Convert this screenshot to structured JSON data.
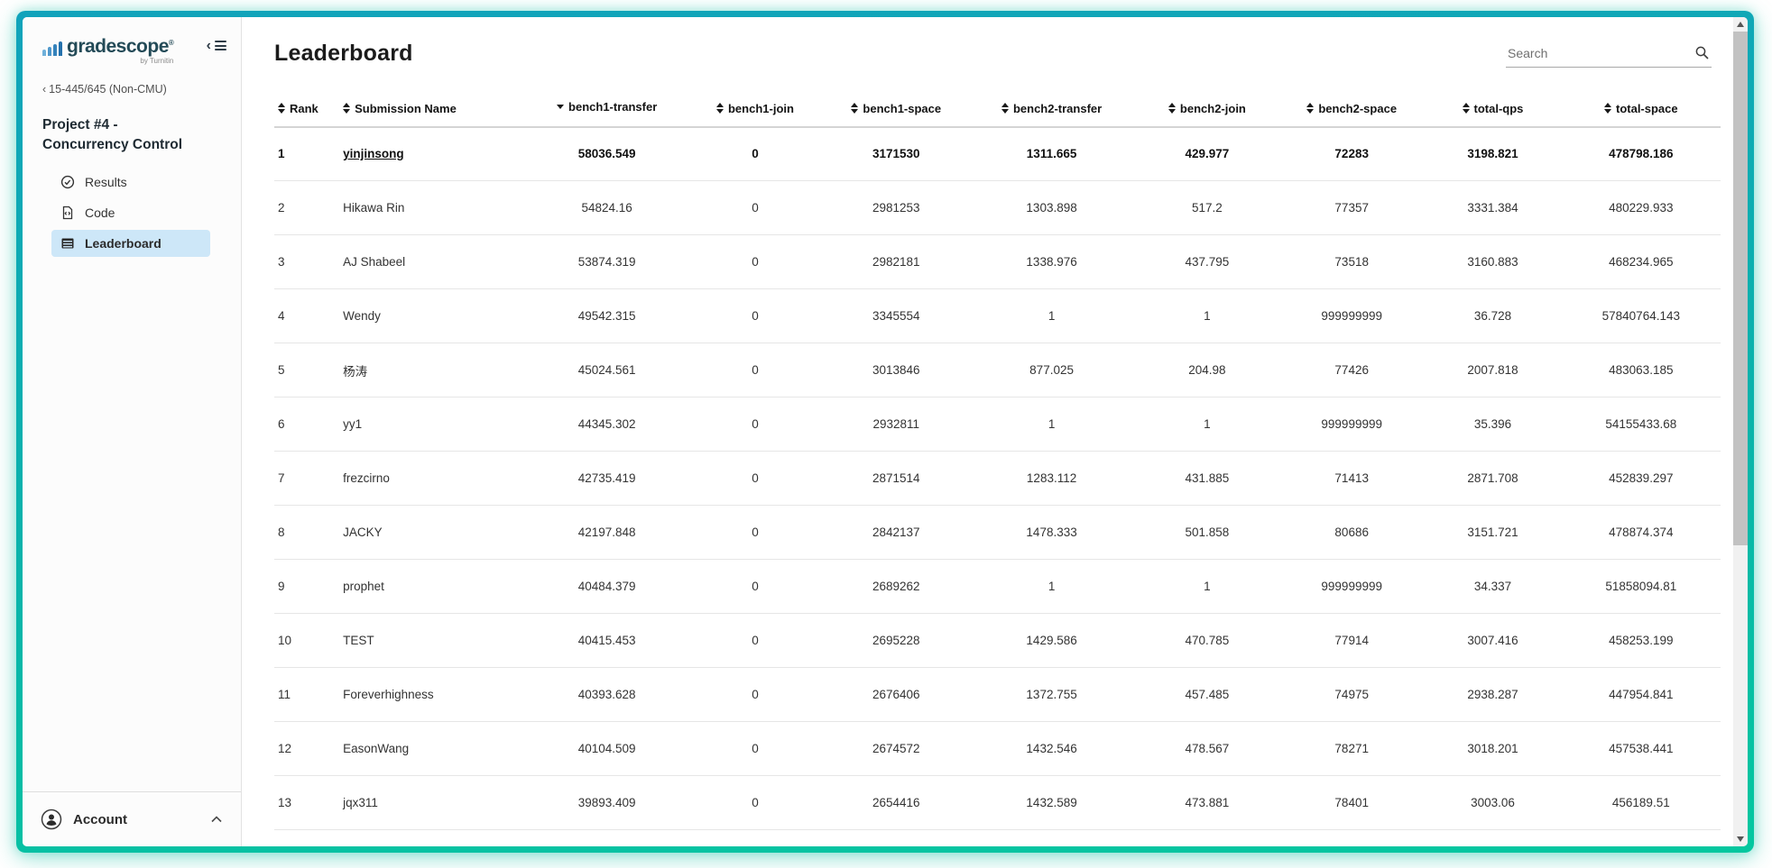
{
  "sidebar": {
    "logo": {
      "brand": "gradescope",
      "registered_mark": "®",
      "byline": "by Turnitin"
    },
    "breadcrumb": {
      "arrow": "‹",
      "label": "15-445/645 (Non-CMU)"
    },
    "project_title": "Project #4 - Concurrency Control",
    "nav": [
      {
        "label": "Results",
        "icon": "check-circle-icon",
        "active": false
      },
      {
        "label": "Code",
        "icon": "code-file-icon",
        "active": false
      },
      {
        "label": "Leaderboard",
        "icon": "table-icon",
        "active": true
      }
    ],
    "account_label": "Account"
  },
  "main": {
    "title": "Leaderboard",
    "search_placeholder": "Search",
    "table": {
      "columns": [
        {
          "label": "Rank",
          "sort": "both",
          "align": "left"
        },
        {
          "label": "Submission Name",
          "sort": "both",
          "align": "left"
        },
        {
          "label": "bench1-transfer",
          "sort": "desc",
          "align": "center"
        },
        {
          "label": "bench1-join",
          "sort": "both",
          "align": "center"
        },
        {
          "label": "bench1-space",
          "sort": "both",
          "align": "center"
        },
        {
          "label": "bench2-transfer",
          "sort": "both",
          "align": "center"
        },
        {
          "label": "bench2-join",
          "sort": "both",
          "align": "center"
        },
        {
          "label": "bench2-space",
          "sort": "both",
          "align": "center"
        },
        {
          "label": "total-qps",
          "sort": "both",
          "align": "center"
        },
        {
          "label": "total-space",
          "sort": "both",
          "align": "center"
        }
      ],
      "rows": [
        {
          "rank": "1",
          "name": "yinjinsong",
          "highlight": true,
          "values": [
            "58036.549",
            "0",
            "3171530",
            "1311.665",
            "429.977",
            "72283",
            "3198.821",
            "478798.186"
          ]
        },
        {
          "rank": "2",
          "name": "Hikawa Rin",
          "highlight": false,
          "values": [
            "54824.16",
            "0",
            "2981253",
            "1303.898",
            "517.2",
            "77357",
            "3331.384",
            "480229.933"
          ]
        },
        {
          "rank": "3",
          "name": "AJ Shabeel",
          "highlight": false,
          "values": [
            "53874.319",
            "0",
            "2982181",
            "1338.976",
            "437.795",
            "73518",
            "3160.883",
            "468234.965"
          ]
        },
        {
          "rank": "4",
          "name": "Wendy",
          "highlight": false,
          "values": [
            "49542.315",
            "0",
            "3345554",
            "1",
            "1",
            "999999999",
            "36.728",
            "57840764.143"
          ]
        },
        {
          "rank": "5",
          "name": "杨涛",
          "highlight": false,
          "values": [
            "45024.561",
            "0",
            "3013846",
            "877.025",
            "204.98",
            "77426",
            "2007.818",
            "483063.185"
          ]
        },
        {
          "rank": "6",
          "name": "yy1",
          "highlight": false,
          "values": [
            "44345.302",
            "0",
            "2932811",
            "1",
            "1",
            "999999999",
            "35.396",
            "54155433.68"
          ]
        },
        {
          "rank": "7",
          "name": "frezcirno",
          "highlight": false,
          "values": [
            "42735.419",
            "0",
            "2871514",
            "1283.112",
            "431.885",
            "71413",
            "2871.708",
            "452839.297"
          ]
        },
        {
          "rank": "8",
          "name": "JACKY",
          "highlight": false,
          "values": [
            "42197.848",
            "0",
            "2842137",
            "1478.333",
            "501.858",
            "80686",
            "3151.721",
            "478874.374"
          ]
        },
        {
          "rank": "9",
          "name": "prophet",
          "highlight": false,
          "values": [
            "40484.379",
            "0",
            "2689262",
            "1",
            "1",
            "999999999",
            "34.337",
            "51858094.81"
          ]
        },
        {
          "rank": "10",
          "name": "TEST",
          "highlight": false,
          "values": [
            "40415.453",
            "0",
            "2695228",
            "1429.586",
            "470.785",
            "77914",
            "3007.416",
            "458253.199"
          ]
        },
        {
          "rank": "11",
          "name": "Foreverhighness",
          "highlight": false,
          "values": [
            "40393.628",
            "0",
            "2676406",
            "1372.755",
            "457.485",
            "74975",
            "2938.287",
            "447954.841"
          ]
        },
        {
          "rank": "12",
          "name": "EasonWang",
          "highlight": false,
          "values": [
            "40104.509",
            "0",
            "2674572",
            "1432.546",
            "478.567",
            "78271",
            "3018.201",
            "457538.441"
          ]
        },
        {
          "rank": "13",
          "name": "jqx311",
          "highlight": false,
          "values": [
            "39893.409",
            "0",
            "2654416",
            "1432.589",
            "473.881",
            "78401",
            "3003.06",
            "456189.51"
          ]
        }
      ]
    }
  }
}
